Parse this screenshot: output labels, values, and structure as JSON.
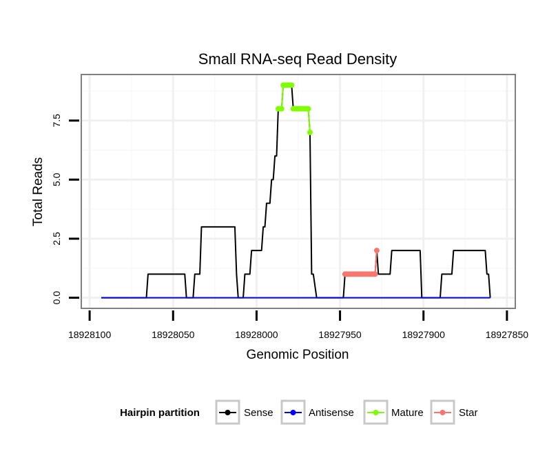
{
  "chart_data": {
    "type": "line",
    "title": "Small RNA-seq Read Density",
    "xlabel": "Genomic Position",
    "ylabel": "Total Reads",
    "x_reversed": true,
    "xlim": [
      18928105,
      18927845
    ],
    "ylim": [
      -0.45,
      9.45
    ],
    "xticks": [
      18928100,
      18928050,
      18928000,
      18927950,
      18927900,
      18927850
    ],
    "xtick_labels": [
      "18928100",
      "18928050",
      "18928000",
      "18927950",
      "18927900",
      "18927850"
    ],
    "yticks": [
      0,
      2.5,
      5,
      7.5
    ],
    "ytick_labels": [
      "0.0",
      "2.5",
      "5.0",
      "7.5"
    ],
    "grid": true,
    "series": [
      {
        "name": "Sense",
        "color": "#000000",
        "markers": false,
        "points": [
          [
            18928093,
            0
          ],
          [
            18928066,
            0
          ],
          [
            18928065,
            1
          ],
          [
            18928043,
            1
          ],
          [
            18928042,
            0
          ],
          [
            18928038,
            0
          ],
          [
            18928037,
            1
          ],
          [
            18928034,
            1
          ],
          [
            18928033,
            3
          ],
          [
            18928013,
            3
          ],
          [
            18928012,
            1
          ],
          [
            18928011,
            0
          ],
          [
            18928008,
            0
          ],
          [
            18928007,
            1
          ],
          [
            18928004,
            1
          ],
          [
            18928003,
            2
          ],
          [
            18927997,
            2
          ],
          [
            18927996,
            3
          ],
          [
            18927995,
            3
          ],
          [
            18927994,
            4
          ],
          [
            18927992,
            4
          ],
          [
            18927991,
            5
          ],
          [
            18927990,
            5
          ],
          [
            18927989,
            6
          ],
          [
            18927988,
            6
          ],
          [
            18927987,
            8
          ],
          [
            18927985,
            8
          ],
          [
            18927984,
            9
          ],
          [
            18927979,
            9
          ],
          [
            18927978,
            8
          ],
          [
            18927969,
            8
          ],
          [
            18927968,
            7
          ],
          [
            18927967,
            1
          ],
          [
            18927966,
            1
          ],
          [
            18927964,
            0
          ],
          [
            18927948,
            0
          ],
          [
            18927947,
            1
          ],
          [
            18927929,
            1
          ],
          [
            18927928,
            2
          ],
          [
            18927927,
            1
          ],
          [
            18927920,
            1
          ],
          [
            18927919,
            2
          ],
          [
            18927902,
            2
          ],
          [
            18927901,
            0
          ],
          [
            18927890,
            0
          ],
          [
            18927889,
            1
          ],
          [
            18927883,
            1
          ],
          [
            18927882,
            2
          ],
          [
            18927863,
            2
          ],
          [
            18927862,
            1
          ],
          [
            18927861,
            1
          ],
          [
            18927860,
            0
          ]
        ]
      },
      {
        "name": "Antisense",
        "color": "#0000ff",
        "markers": false,
        "points": [
          [
            18928093,
            0
          ],
          [
            18927860,
            0
          ]
        ]
      },
      {
        "name": "Mature",
        "color": "#7fff00",
        "markers": true,
        "line_segments": [
          [
            1,
            9
          ],
          [
            10,
            25
          ]
        ],
        "points": [
          [
            18927987,
            8
          ],
          [
            18927986,
            8
          ],
          [
            18927985,
            8
          ],
          [
            18927984,
            9
          ],
          [
            18927983,
            9
          ],
          [
            18927982,
            9
          ],
          [
            18927981,
            9
          ],
          [
            18927980,
            9
          ],
          [
            18927979,
            9
          ],
          [
            18927978,
            8
          ],
          [
            18927977,
            8
          ],
          [
            18927976,
            8
          ],
          [
            18927975,
            8
          ],
          [
            18927974,
            8
          ],
          [
            18927973,
            8
          ],
          [
            18927972,
            8
          ],
          [
            18927971,
            8
          ],
          [
            18927970,
            8
          ],
          [
            18927969,
            8
          ],
          [
            18927968,
            7
          ]
        ]
      },
      {
        "name": "Star",
        "color": "#f8766d",
        "markers": true,
        "points": [
          [
            18927947,
            1
          ],
          [
            18927946,
            1
          ],
          [
            18927945,
            1
          ],
          [
            18927944,
            1
          ],
          [
            18927943,
            1
          ],
          [
            18927942,
            1
          ],
          [
            18927941,
            1
          ],
          [
            18927940,
            1
          ],
          [
            18927939,
            1
          ],
          [
            18927938,
            1
          ],
          [
            18927937,
            1
          ],
          [
            18927936,
            1
          ],
          [
            18927935,
            1
          ],
          [
            18927934,
            1
          ],
          [
            18927933,
            1
          ],
          [
            18927932,
            1
          ],
          [
            18927931,
            1
          ],
          [
            18927930,
            1
          ],
          [
            18927929,
            1
          ],
          [
            18927928,
            2
          ]
        ]
      }
    ],
    "legend": {
      "title": "Hairpin partition",
      "placement": "bottom",
      "entries": [
        {
          "label": "Sense",
          "color": "#000000"
        },
        {
          "label": "Antisense",
          "color": "#0000ff"
        },
        {
          "label": "Mature",
          "color": "#7fff00"
        },
        {
          "label": "Star",
          "color": "#f8766d"
        }
      ]
    }
  }
}
